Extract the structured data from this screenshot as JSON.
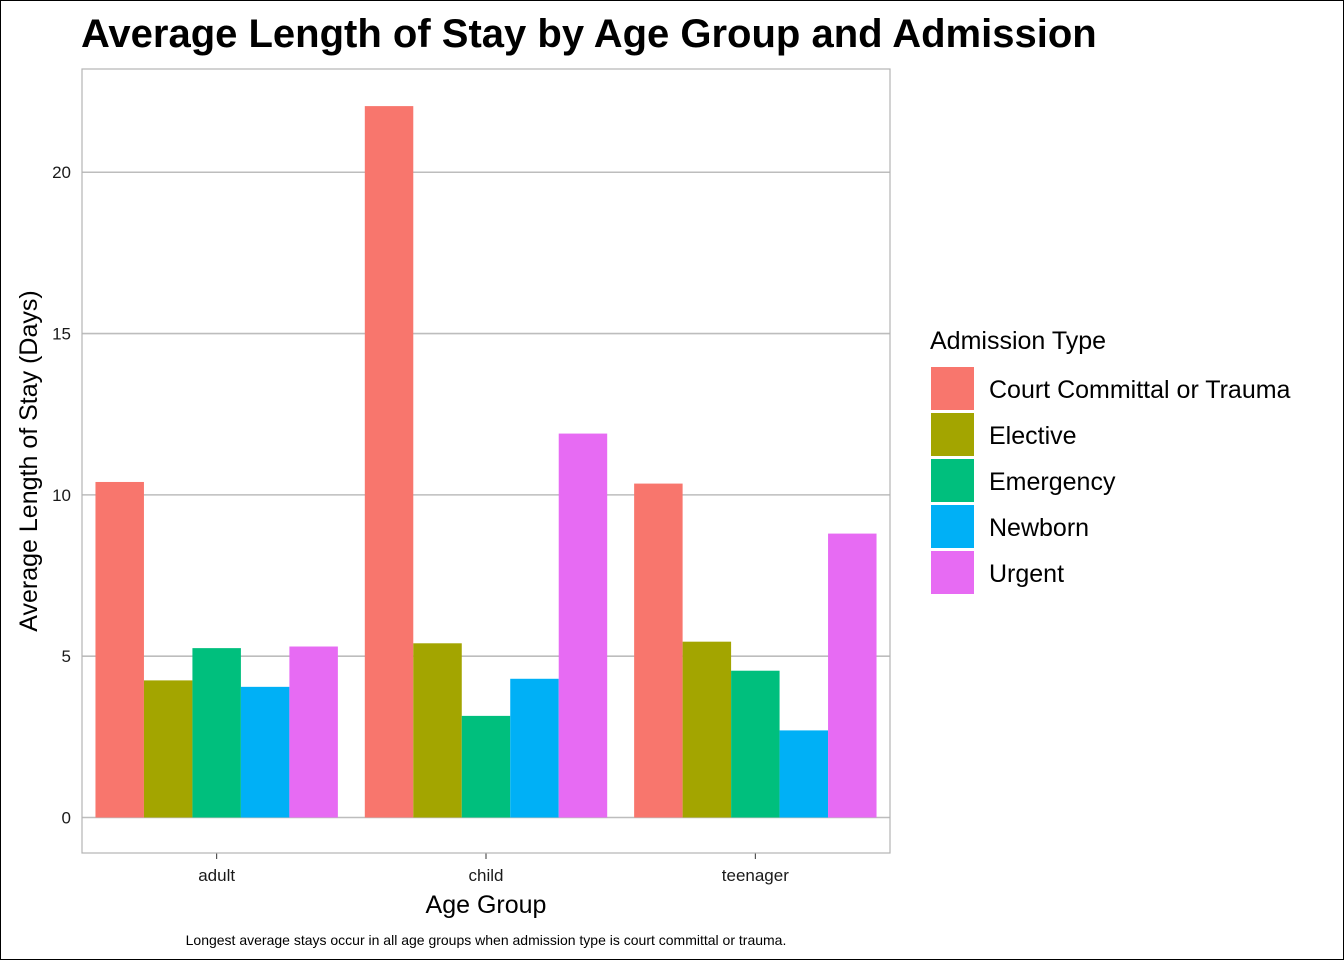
{
  "chart_data": {
    "type": "bar",
    "title": "Average Length of Stay by Age Group and Admission",
    "xlabel": "Age Group",
    "ylabel": "Average Length of Stay (Days)",
    "caption": "Longest average stays occur in all age groups when admission type is court committal or trauma.",
    "categories": [
      "adult",
      "child",
      "teenager"
    ],
    "ylim": [
      -1.1,
      23.2
    ],
    "yticks": [
      0,
      5,
      10,
      15,
      20
    ],
    "grid": "horizontal",
    "legend": {
      "title": "Admission Type",
      "placement": "right"
    },
    "series": [
      {
        "name": "Court Committal or Trauma",
        "color": "#F8766D",
        "values": [
          10.4,
          22.05,
          10.35
        ]
      },
      {
        "name": "Elective",
        "color": "#A3A500",
        "values": [
          4.25,
          5.4,
          5.45
        ]
      },
      {
        "name": "Emergency",
        "color": "#00BF7D",
        "values": [
          5.25,
          3.15,
          4.55
        ]
      },
      {
        "name": "Newborn",
        "color": "#00B0F6",
        "values": [
          4.05,
          4.3,
          2.7
        ]
      },
      {
        "name": "Urgent",
        "color": "#E76BF3",
        "values": [
          5.3,
          11.9,
          8.8
        ]
      }
    ]
  }
}
